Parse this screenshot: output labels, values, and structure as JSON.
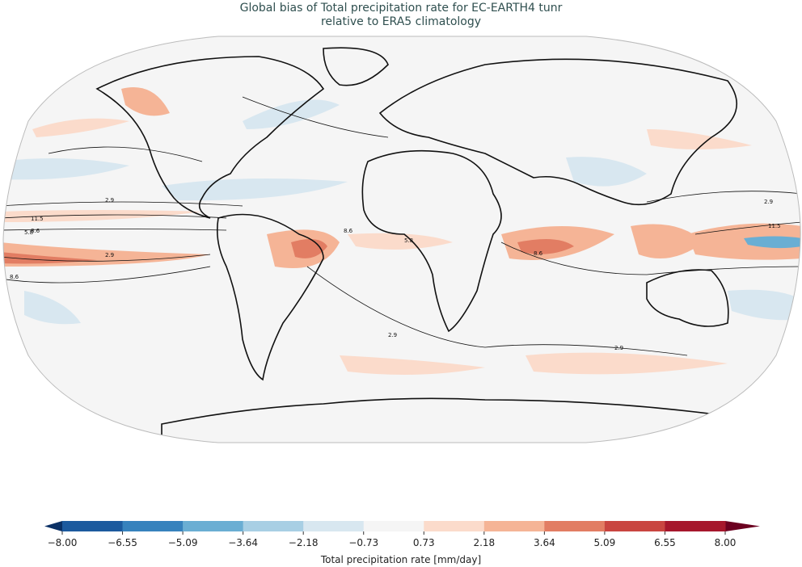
{
  "title": {
    "line1": "Global bias of Total precipitation rate for EC-EARTH4 tunr",
    "line2": "relative to ERA5 climatology"
  },
  "colorbar": {
    "label": "Total precipitation rate [mm/day]",
    "ticks": [
      "−8.00",
      "−6.55",
      "−5.09",
      "−3.64",
      "−2.18",
      "−0.73",
      "0.73",
      "2.18",
      "3.64",
      "5.09",
      "6.55",
      "8.00"
    ],
    "colors": [
      "#1c5a9e",
      "#3782bd",
      "#6aaed3",
      "#a8cfe4",
      "#d8e7f0",
      "#f5f5f5",
      "#fbdbcb",
      "#f5b496",
      "#e27d63",
      "#c94540",
      "#a6172c"
    ],
    "under_color": "#0a3065",
    "over_color": "#6b0020"
  },
  "contour_labels": [
    "2.9",
    "5.8",
    "8.6",
    "11.5"
  ],
  "map_background": "#f5f5f5"
}
